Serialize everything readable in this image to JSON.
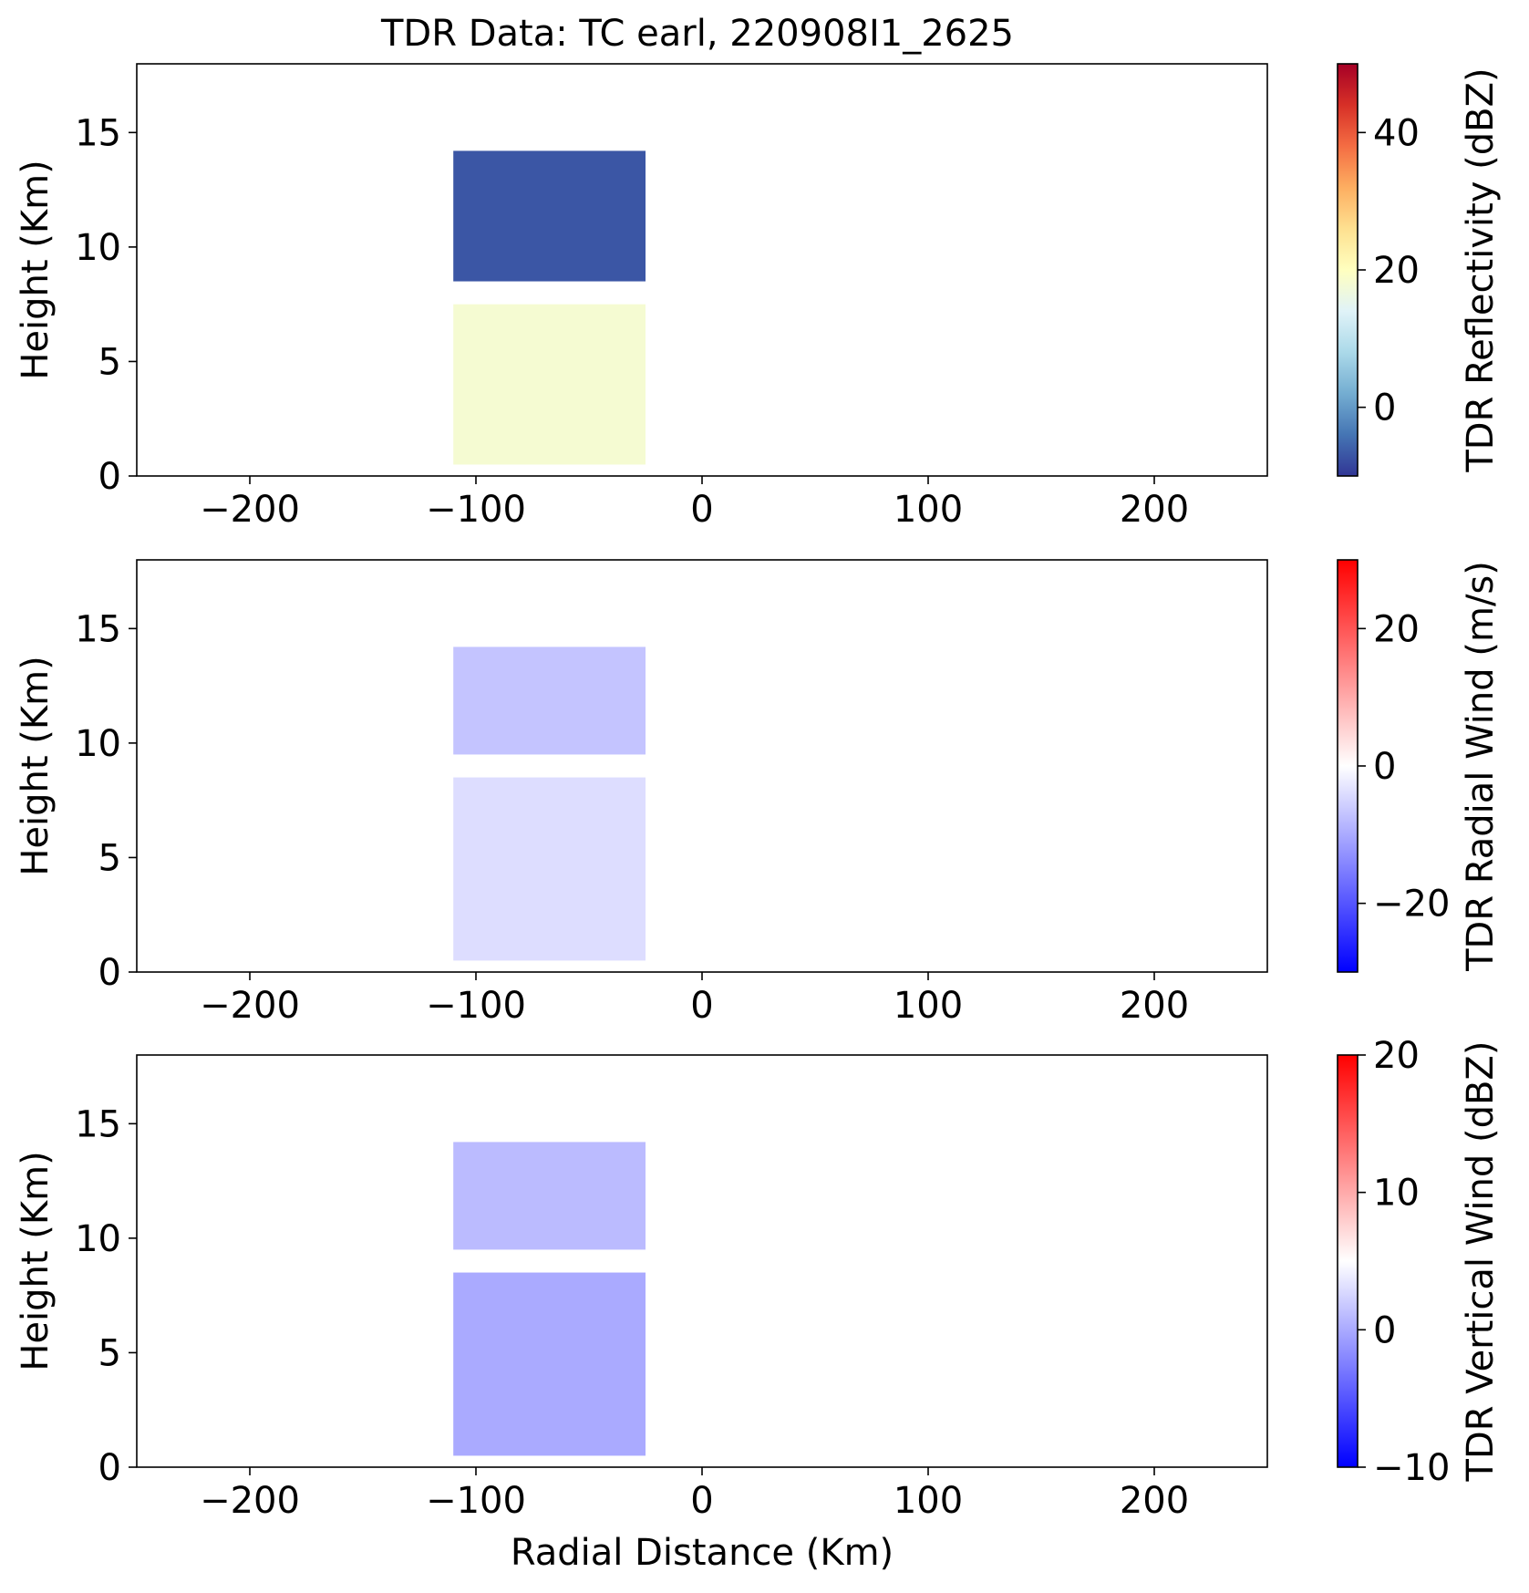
{
  "figure_title": "TDR Data: TC earl, 220908I1_2625",
  "chart_data": [
    {
      "type": "heatmap",
      "title": "TDR Data: TC earl, 220908I1_2625",
      "xlabel": "",
      "ylabel": "Height (Km)",
      "xlim": [
        -250,
        250
      ],
      "ylim": [
        0,
        18
      ],
      "xticks": [
        -200,
        -100,
        0,
        100,
        200
      ],
      "xtick_labels": [
        "−200",
        "−100",
        "0",
        "100",
        "200"
      ],
      "yticks": [
        0,
        5,
        10,
        15
      ],
      "ytick_labels": [
        "0",
        "5",
        "10",
        "15"
      ],
      "grid": false,
      "colorbar": {
        "label": "TDR Reflectivity (dBZ)",
        "range": [
          -10,
          50
        ],
        "ticks": [
          0,
          20,
          40
        ],
        "tick_labels": [
          "0",
          "20",
          "40"
        ],
        "colormap": "RdYlBu_r",
        "colors": [
          "#313695",
          "#4575b4",
          "#74add1",
          "#abd9e9",
          "#e0f3f8",
          "#ffffbf",
          "#fee090",
          "#fdae61",
          "#f46d43",
          "#d73027",
          "#a50026"
        ]
      },
      "regions": [
        {
          "x": [
            -110,
            -25
          ],
          "y": [
            8.5,
            14.2
          ],
          "value": -7
        },
        {
          "x": [
            -110,
            -25
          ],
          "y": [
            0.5,
            7.5
          ],
          "value": 18
        }
      ]
    },
    {
      "type": "heatmap",
      "title": "",
      "xlabel": "",
      "ylabel": "Height (Km)",
      "xlim": [
        -250,
        250
      ],
      "ylim": [
        0,
        18
      ],
      "xticks": [
        -200,
        -100,
        0,
        100,
        200
      ],
      "xtick_labels": [
        "−200",
        "−100",
        "0",
        "100",
        "200"
      ],
      "yticks": [
        0,
        5,
        10,
        15
      ],
      "ytick_labels": [
        "0",
        "5",
        "10",
        "15"
      ],
      "grid": false,
      "colorbar": {
        "label": "TDR Radial Wind (m/s)",
        "range": [
          -30,
          30
        ],
        "ticks": [
          -20,
          0,
          20
        ],
        "tick_labels": [
          "−20",
          "0",
          "20"
        ],
        "colormap": "bwr",
        "colors": [
          "#0000ff",
          "#ffffff",
          "#ff0000"
        ]
      },
      "regions": [
        {
          "x": [
            -110,
            -25
          ],
          "y": [
            9.5,
            14.2
          ],
          "value": -7
        },
        {
          "x": [
            -110,
            -25
          ],
          "y": [
            0.5,
            8.5
          ],
          "value": -4
        }
      ]
    },
    {
      "type": "heatmap",
      "title": "",
      "xlabel": "Radial Distance (Km)",
      "ylabel": "Height (Km)",
      "xlim": [
        -250,
        250
      ],
      "ylim": [
        0,
        18
      ],
      "xticks": [
        -200,
        -100,
        0,
        100,
        200
      ],
      "xtick_labels": [
        "−200",
        "−100",
        "0",
        "100",
        "200"
      ],
      "yticks": [
        0,
        5,
        10,
        15
      ],
      "ytick_labels": [
        "0",
        "5",
        "10",
        "15"
      ],
      "grid": false,
      "colorbar": {
        "label": "TDR Vertical Wind (dBZ)",
        "range": [
          -10,
          20
        ],
        "ticks": [
          -10,
          0,
          10,
          20
        ],
        "tick_labels": [
          "−10",
          "0",
          "10",
          "20"
        ],
        "colormap": "bwr",
        "colors": [
          "#0000ff",
          "#ffffff",
          "#ff0000"
        ]
      },
      "regions": [
        {
          "x": [
            -110,
            -25
          ],
          "y": [
            9.5,
            14.2
          ],
          "value": 1
        },
        {
          "x": [
            -110,
            -25
          ],
          "y": [
            0.5,
            8.5
          ],
          "value": 0
        }
      ]
    }
  ]
}
